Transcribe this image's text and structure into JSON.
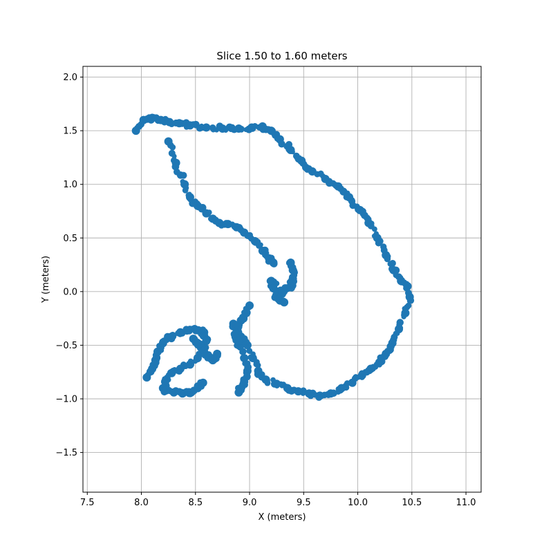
{
  "chart_data": {
    "type": "scatter",
    "title": "Slice 1.50 to 1.60 meters",
    "xlabel": "X (meters)",
    "ylabel": "Y (meters)",
    "xlim": [
      7.46,
      11.14
    ],
    "ylim": [
      -1.87,
      2.1
    ],
    "xticks": [
      7.5,
      8.0,
      8.5,
      9.0,
      9.5,
      10.0,
      10.5,
      11.0
    ],
    "yticks": [
      -1.5,
      -1.0,
      -0.5,
      0.0,
      0.5,
      1.0,
      1.5,
      2.0
    ],
    "xtick_labels": [
      "7.5",
      "8.0",
      "8.5",
      "9.0",
      "9.5",
      "10.0",
      "10.5",
      "11.0"
    ],
    "ytick_labels": [
      "−1.5",
      "−1.0",
      "−0.5",
      "0.0",
      "0.5",
      "1.0",
      "1.5",
      "2.0"
    ],
    "grid": true,
    "color": "#1f77b4",
    "series": [
      {
        "x": [
          7.95,
          8.02,
          8.1,
          8.18,
          8.26,
          8.35,
          8.45,
          8.6,
          8.75,
          8.9,
          9.02,
          9.12,
          9.2,
          9.28,
          9.38,
          9.48,
          9.58,
          9.7,
          9.82,
          9.92,
          10.02,
          10.1,
          10.18,
          10.26,
          10.33,
          10.4,
          10.46,
          10.48,
          10.44,
          10.38,
          10.32,
          10.26,
          10.2,
          10.12,
          10.04,
          9.95,
          9.85,
          9.75,
          9.65,
          9.55,
          9.45,
          9.35,
          9.25,
          9.15,
          9.08,
          9.03,
          8.98,
          8.92,
          8.88,
          8.85
        ],
        "y": [
          1.5,
          1.6,
          1.62,
          1.6,
          1.58,
          1.57,
          1.55,
          1.53,
          1.52,
          1.52,
          1.53,
          1.54,
          1.5,
          1.42,
          1.32,
          1.22,
          1.12,
          1.05,
          0.98,
          0.88,
          0.76,
          0.64,
          0.5,
          0.34,
          0.2,
          0.1,
          0.05,
          -0.05,
          -0.2,
          -0.35,
          -0.48,
          -0.58,
          -0.66,
          -0.72,
          -0.78,
          -0.85,
          -0.9,
          -0.95,
          -0.97,
          -0.95,
          -0.93,
          -0.9,
          -0.86,
          -0.82,
          -0.74,
          -0.62,
          -0.5,
          -0.42,
          -0.35,
          -0.3
        ]
      },
      {
        "x": [
          8.25,
          8.32,
          8.4,
          8.45,
          8.52,
          8.6,
          8.66,
          8.72,
          8.8,
          8.88,
          8.95,
          9.05,
          9.12,
          9.18,
          9.22
        ],
        "y": [
          1.4,
          1.2,
          1.0,
          0.88,
          0.8,
          0.73,
          0.68,
          0.64,
          0.63,
          0.6,
          0.55,
          0.47,
          0.38,
          0.31,
          0.27
        ]
      },
      {
        "x": [
          9.38,
          9.4,
          9.4,
          9.38,
          9.34,
          9.3,
          9.2,
          9.22,
          9.27,
          9.32
        ],
        "y": [
          0.27,
          0.2,
          0.12,
          0.05,
          0.03,
          -0.02,
          0.1,
          0.03,
          -0.07,
          -0.1
        ]
      },
      {
        "x": [
          9.0,
          8.97,
          8.92,
          8.88,
          8.87,
          8.9,
          8.95,
          8.98,
          8.95,
          8.92,
          8.9
        ],
        "y": [
          -0.13,
          -0.2,
          -0.27,
          -0.34,
          -0.42,
          -0.5,
          -0.62,
          -0.74,
          -0.84,
          -0.9,
          -0.94
        ]
      },
      {
        "x": [
          8.05,
          8.1,
          8.13,
          8.15,
          8.2,
          8.28,
          8.36,
          8.44,
          8.52,
          8.58,
          8.6,
          8.57,
          8.52,
          8.45,
          8.36,
          8.28,
          8.22,
          8.2,
          8.23,
          8.3,
          8.38,
          8.46,
          8.52,
          8.57
        ],
        "y": [
          -0.8,
          -0.72,
          -0.64,
          -0.56,
          -0.48,
          -0.42,
          -0.38,
          -0.36,
          -0.36,
          -0.38,
          -0.46,
          -0.55,
          -0.62,
          -0.68,
          -0.72,
          -0.76,
          -0.84,
          -0.9,
          -0.92,
          -0.94,
          -0.95,
          -0.94,
          -0.9,
          -0.85
        ]
      },
      {
        "x": [
          8.48,
          8.52,
          8.55,
          8.58,
          8.62,
          8.66,
          8.7
        ],
        "y": [
          -0.44,
          -0.48,
          -0.52,
          -0.56,
          -0.6,
          -0.64,
          -0.58
        ]
      }
    ]
  }
}
